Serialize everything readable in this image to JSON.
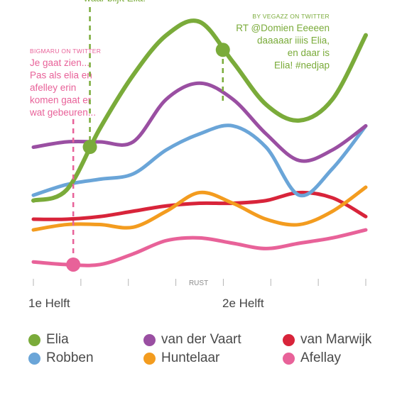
{
  "chart_data": {
    "type": "line",
    "title": "",
    "xlabel": "",
    "ylabel": "",
    "x_ticks": [
      "",
      "",
      "",
      "RUST",
      "",
      "",
      "",
      ""
    ],
    "halves": [
      "1e Helft",
      "2e Helft"
    ],
    "grid": false,
    "legend_position": "bottom",
    "series": [
      {
        "name": "Elia",
        "color": "#7aab3a",
        "values": [
          28,
          32,
          55,
          75,
          90,
          95,
          80,
          64,
          58,
          66,
          90
        ]
      },
      {
        "name": "Robben",
        "color": "#6aa5d8",
        "values": [
          30,
          34,
          36,
          38,
          47,
          53,
          56,
          48,
          30,
          40,
          56
        ]
      },
      {
        "name": "van der Vaart",
        "color": "#9a4fa2",
        "values": [
          48,
          50,
          50,
          50,
          66,
          72,
          66,
          53,
          43,
          47,
          56
        ]
      },
      {
        "name": "Huntelaar",
        "color": "#f39c1f",
        "values": [
          17,
          19,
          19,
          18,
          24,
          31,
          27,
          21,
          19,
          24,
          33
        ]
      },
      {
        "name": "van Marwijk",
        "color": "#d8243a",
        "values": [
          21,
          21,
          22,
          24,
          26,
          27,
          27,
          28,
          31,
          29,
          22
        ]
      },
      {
        "name": "Afellay",
        "color": "#e86299",
        "values": [
          5,
          4,
          4,
          8,
          13,
          14,
          12,
          10,
          12,
          14,
          17
        ]
      }
    ],
    "annotations": [
      {
        "series": "Afellay",
        "x_index": 1.2,
        "source": "BIGMARU ON TWITTER",
        "lines": [
          "Je gaat zien...",
          "Pas als elia en",
          "afelley erin",
          "komen gaat er",
          "wat gebeuren..."
        ]
      },
      {
        "series": "Elia",
        "x_index": 1.7,
        "lines": [
          "waar blijft Elia!"
        ]
      },
      {
        "series": "Elia",
        "x_index": 5.7,
        "source": "BY VEGAZZ ON TWITTER",
        "lines": [
          "RT @Domien Eeeeen",
          "daaaaar iiiis Elia,",
          "en daar is",
          "Elia! #nedjap"
        ]
      }
    ]
  }
}
